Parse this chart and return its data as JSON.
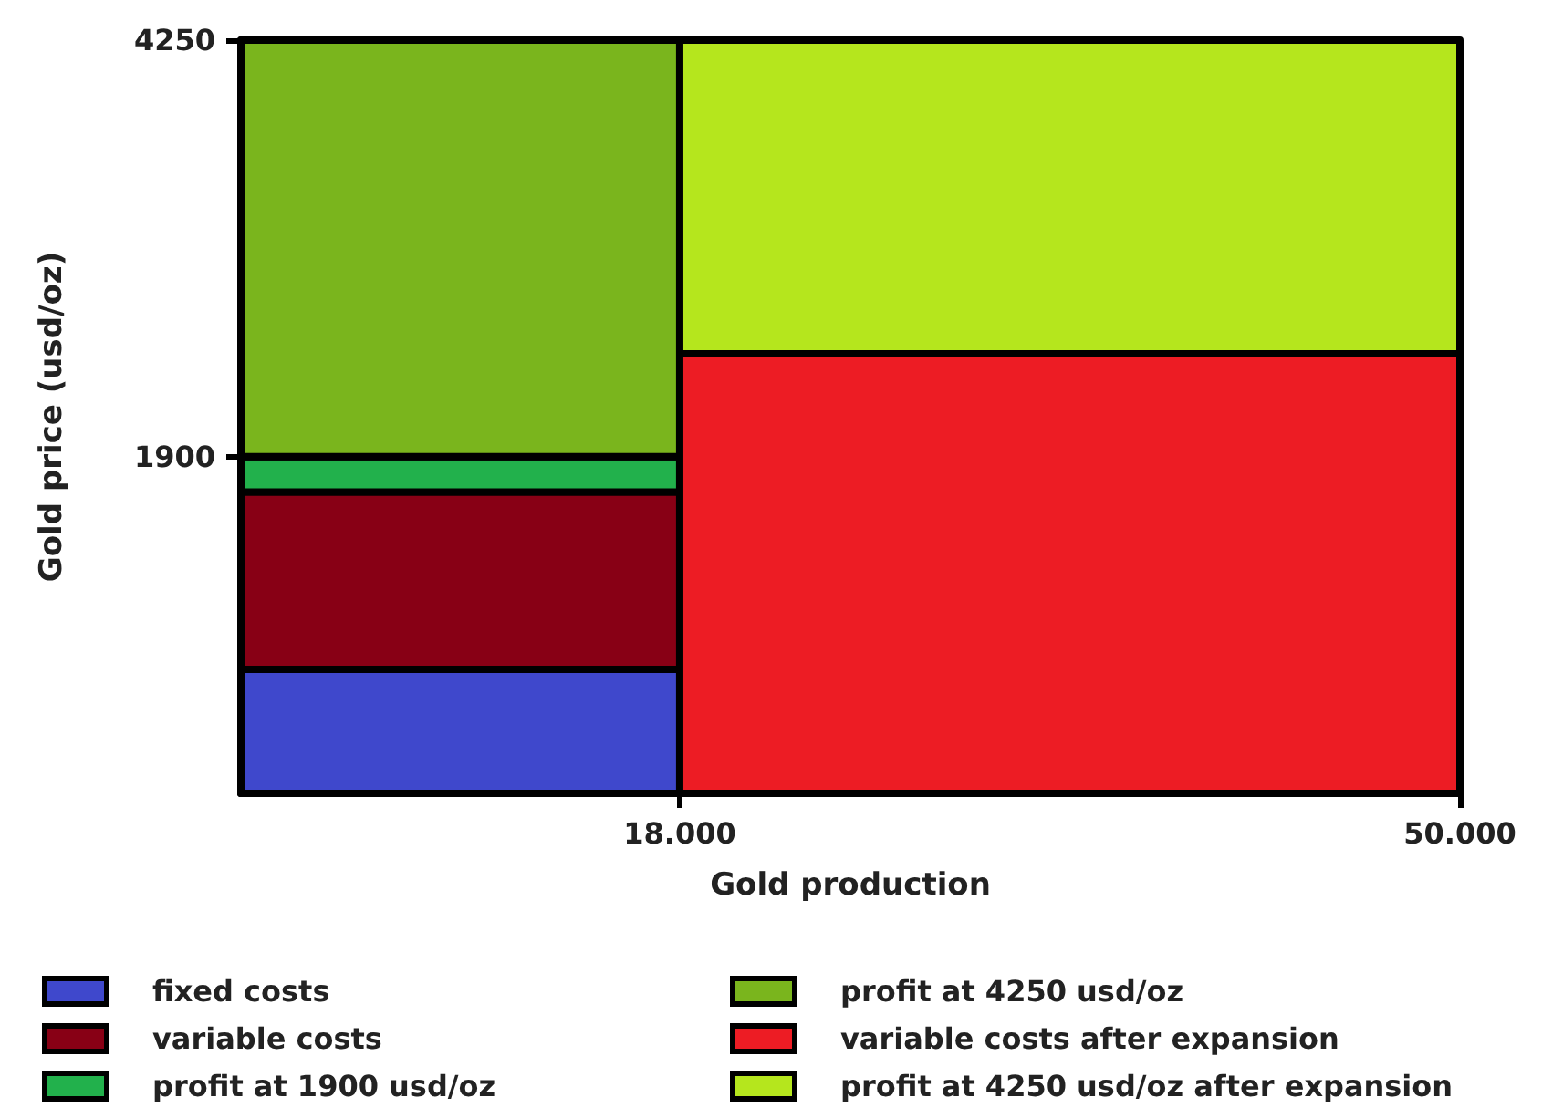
{
  "chart_data": {
    "type": "area",
    "stacked": true,
    "xlabel": "Gold production",
    "ylabel": "Gold price (usd/oz)",
    "x": [
      0,
      18000,
      18000,
      50000
    ],
    "xlim": [
      0,
      50000
    ],
    "ylim": [
      0,
      4250
    ],
    "xticks": [
      {
        "value": 18000,
        "label": "18.000"
      },
      {
        "value": 50000,
        "label": "50.000"
      }
    ],
    "yticks": [
      1900,
      4250
    ],
    "series": [
      {
        "name": "fixed costs",
        "color": "#3f48cc",
        "values": [
          700,
          700,
          null,
          null
        ]
      },
      {
        "name": "variable costs",
        "color": "#880015",
        "values": [
          1000,
          1000,
          null,
          null
        ]
      },
      {
        "name": "profit at 1900 usd/oz",
        "color": "#22b14c",
        "values": [
          200,
          200,
          null,
          null
        ]
      },
      {
        "name": "profit at 4250 usd/oz",
        "color": "#7ab51d",
        "values": [
          2350,
          2350,
          null,
          null
        ]
      },
      {
        "name": "variable costs after expansion",
        "color": "#ed1c24",
        "values": [
          null,
          null,
          2480,
          2480
        ]
      },
      {
        "name": "profit at 4250 usd/oz after expansion",
        "color": "#b5e61d",
        "values": [
          null,
          null,
          1770,
          1770
        ]
      }
    ],
    "legend": "bottom",
    "line_style": "solid"
  }
}
